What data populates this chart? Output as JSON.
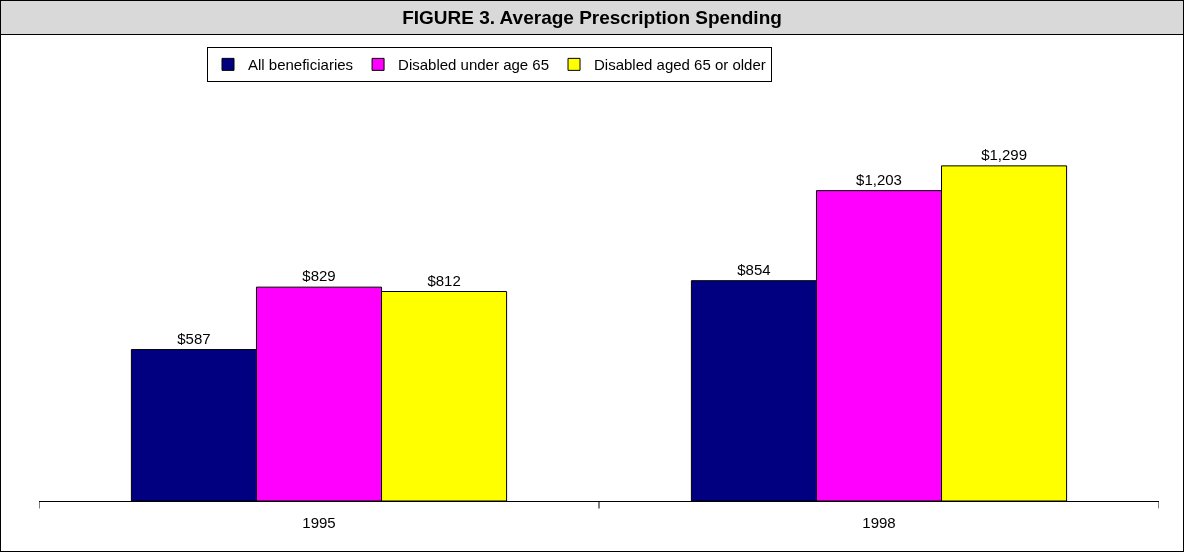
{
  "chart_data": {
    "type": "bar",
    "title": "FIGURE 3. Average Prescription Spending",
    "categories": [
      "1995",
      "1998"
    ],
    "series": [
      {
        "name": "All beneficiaries",
        "color": "#000080",
        "values": [
          587,
          854
        ],
        "value_labels": [
          "$587",
          "$854"
        ]
      },
      {
        "name": "Disabled under age 65",
        "color": "#ff00ff",
        "values": [
          829,
          1203
        ],
        "value_labels": [
          "$829",
          "$1,203"
        ]
      },
      {
        "name": "Disabled aged 65 or older",
        "color": "#ffff00",
        "values": [
          812,
          1299
        ],
        "value_labels": [
          "$812",
          "$1,299"
        ]
      }
    ],
    "legend": "top"
  }
}
